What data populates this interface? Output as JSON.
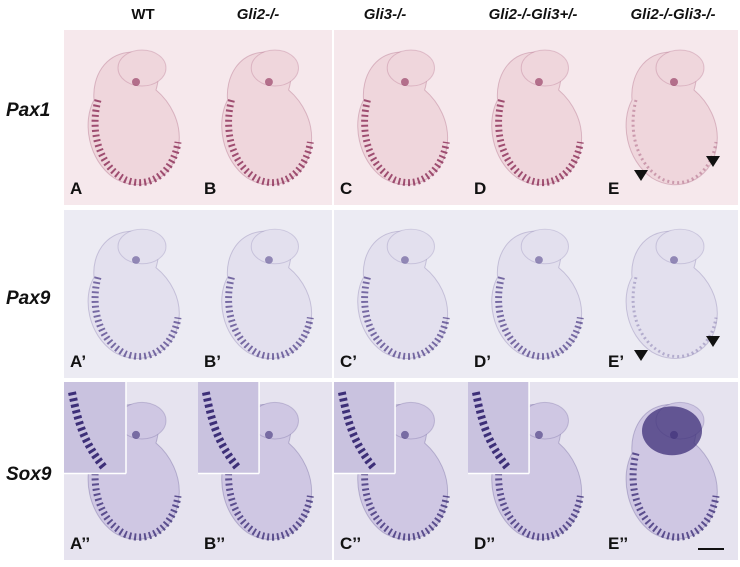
{
  "columns": [
    "WT",
    "Gli2-/-",
    "Gli3-/-",
    "Gli2-/-Gli3+/-",
    "Gli2-/-Gli3-/-"
  ],
  "rows": [
    {
      "label": "Pax1",
      "panels": [
        "A",
        "B",
        "C",
        "D",
        "E"
      ],
      "bg": "#f6e8ec",
      "embryo": "#efd6dc",
      "stain": "#8a2a55"
    },
    {
      "label": "Pax9",
      "panels": [
        "A’",
        "B’",
        "C’",
        "D’",
        "E’"
      ],
      "bg": "#ecebf3",
      "embryo": "#e3e0ee",
      "stain": "#5a4b8f"
    },
    {
      "label": "Sox9",
      "panels": [
        "A’’",
        "B’’",
        "C’’",
        "D’’",
        "E’’"
      ],
      "bg": "#e6e3ef",
      "embryo": "#cfc7e3",
      "stain": "#3d2f78"
    }
  ]
}
